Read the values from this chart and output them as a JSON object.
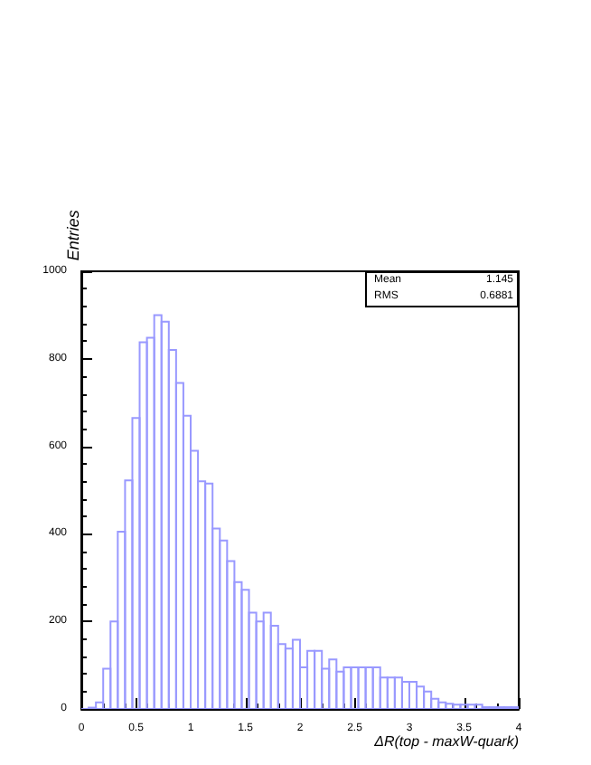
{
  "chart_data": {
    "type": "histogram",
    "xlabel": "ΔR(top - maxW-quark)",
    "ylabel": "Entries",
    "bins": [
      0,
      0.0667,
      0.1333,
      0.2,
      0.2667,
      0.3333,
      0.4,
      0.4667,
      0.5333,
      0.6,
      0.6667,
      0.7333,
      0.8,
      0.8667,
      0.9333,
      1,
      1.0667,
      1.1333,
      1.2,
      1.2667,
      1.3333,
      1.4,
      1.4667,
      1.5333,
      1.6,
      1.6667,
      1.7333,
      1.8,
      1.8667,
      1.9333,
      2,
      2.0667,
      2.1333,
      2.2,
      2.2667,
      2.3333,
      2.4,
      2.4667,
      2.5333,
      2.6,
      2.6667,
      2.7333,
      2.8,
      2.8667,
      2.9333,
      3,
      3.0667,
      3.1333,
      3.2,
      3.2667,
      3.3333,
      3.4,
      3.4667,
      3.5333,
      3.6,
      3.6667,
      3.7333,
      3.8,
      3.8667,
      3.9333,
      4
    ],
    "values": [
      0,
      3,
      15,
      92,
      200,
      405,
      522,
      665,
      838,
      848,
      900,
      885,
      820,
      745,
      670,
      590,
      520,
      515,
      412,
      385,
      338,
      290,
      272,
      220,
      200,
      220,
      190,
      148,
      138,
      158,
      95,
      133,
      133,
      92,
      113,
      85,
      95,
      95,
      95,
      95,
      95,
      72,
      72,
      72,
      62,
      62,
      51,
      40,
      23,
      15,
      12,
      10,
      10,
      10,
      10,
      4,
      4,
      4,
      4,
      4
    ],
    "color": "#9999ff",
    "xlim": [
      0,
      4
    ],
    "xticks": [
      0,
      0.5,
      1,
      1.5,
      2,
      2.5,
      3,
      3.5,
      4
    ],
    "ylim": [
      0,
      1000
    ],
    "yticks": [
      0,
      200,
      400,
      600,
      800,
      1000
    ],
    "grid": false,
    "annotations": [
      "Mean 1.145",
      "RMS 0.6881"
    ]
  }
}
